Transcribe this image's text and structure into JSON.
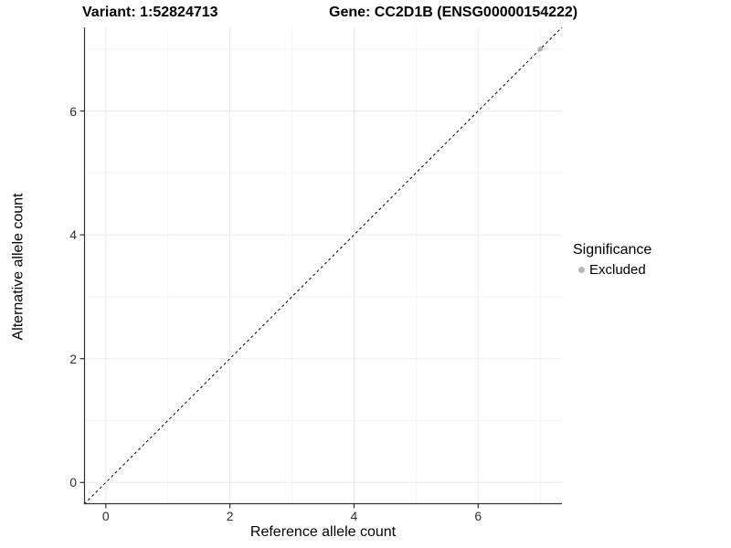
{
  "title": {
    "variant": "Variant: 1:52824713",
    "gene": "Gene: CC2D1B (ENSG00000154222)"
  },
  "chart_data": {
    "type": "scatter",
    "xlabel": "Reference allele count",
    "ylabel": "Alternative allele count",
    "xlim": [
      -0.35,
      7.35
    ],
    "ylim": [
      -0.35,
      7.35
    ],
    "xticks": [
      0,
      2,
      4,
      6
    ],
    "yticks": [
      0,
      2,
      4,
      6
    ],
    "minor_xticks": [
      1,
      3,
      5,
      7
    ],
    "minor_yticks": [
      1,
      3,
      5,
      7
    ],
    "grid": "major and minor, light gray on white",
    "identity_line": {
      "equation": "y = x",
      "style": "dashed",
      "color": "#000000",
      "from": [
        -0.35,
        -0.35
      ],
      "to": [
        7.35,
        7.35
      ]
    },
    "series": [
      {
        "name": "Excluded",
        "color": "#b5b5b5",
        "points": [
          [
            7,
            7
          ]
        ],
        "marker_radius": 2.8
      }
    ],
    "legend": {
      "title": "Significance",
      "position": "right",
      "items": [
        {
          "label": "Excluded",
          "color": "#b5b5b5"
        }
      ]
    }
  },
  "colors": {
    "background": "#ffffff",
    "axis_line": "#333333",
    "tick_mark": "#333333",
    "tick_label": "#303030",
    "grid_major": "#ebebeb",
    "grid_minor": "#f5f5f5",
    "title_text": "#000000"
  }
}
